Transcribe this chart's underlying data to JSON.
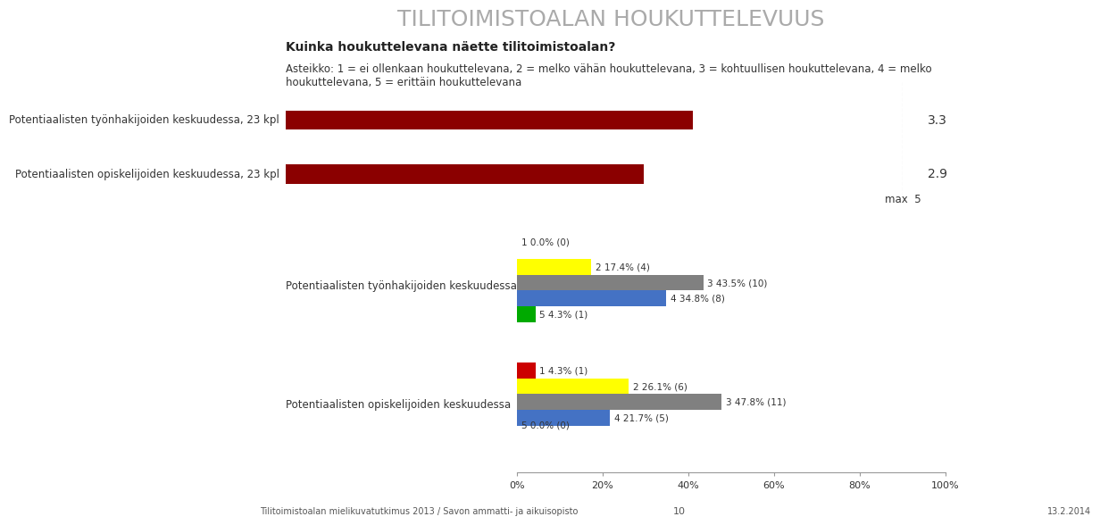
{
  "title": "TILITOIMISTOALAN HOUKUTTELEVUUS",
  "question": "Kuinka houkuttelevana näette tilitoimistoalan?",
  "scale_text": "Asteikko: 1 = ei ollenkaan houkuttelevana, 2 = melko vähän houkuttelevana, 3 = kohtuullisen houkuttelevana, 4 = melko\nhoukuttelevana, 5 = erittäin houkuttelevana",
  "top_bars": [
    {
      "label": "Potentiaalisten työnhakijoiden keskuudessa, 23 kpl",
      "value": 3.3,
      "max": 5,
      "color": "#8B0000"
    },
    {
      "label": "Potentiaalisten opiskelijoiden keskuudessa, 23 kpl",
      "value": 2.9,
      "max": 5,
      "color": "#8B0000"
    }
  ],
  "max_label": "max  5",
  "bottom_charts": [
    {
      "label": "Potentiaalisten työnhakijoiden keskuudessa",
      "bars": [
        {
          "rating": 1,
          "pct": 0.0,
          "n": 0,
          "color": "#CC0000"
        },
        {
          "rating": 2,
          "pct": 17.4,
          "n": 4,
          "color": "#FFFF00"
        },
        {
          "rating": 3,
          "pct": 43.5,
          "n": 10,
          "color": "#808080"
        },
        {
          "rating": 4,
          "pct": 34.8,
          "n": 8,
          "color": "#4472C4"
        },
        {
          "rating": 5,
          "pct": 4.3,
          "n": 1,
          "color": "#00AA00"
        }
      ]
    },
    {
      "label": "Potentiaalisten opiskelijoiden keskuudessa",
      "bars": [
        {
          "rating": 1,
          "pct": 4.3,
          "n": 1,
          "color": "#CC0000"
        },
        {
          "rating": 2,
          "pct": 26.1,
          "n": 6,
          "color": "#FFFF00"
        },
        {
          "rating": 3,
          "pct": 47.8,
          "n": 11,
          "color": "#808080"
        },
        {
          "rating": 4,
          "pct": 21.7,
          "n": 5,
          "color": "#4472C4"
        },
        {
          "rating": 5,
          "pct": 0.0,
          "n": 0,
          "color": "#00AA00"
        }
      ]
    }
  ],
  "footer_left": "Tilitoimistoalan mielikuvatutkimus 2013 / Savon ammatti- ja aikuisopisto",
  "footer_center": "10",
  "footer_right": "13.2.2014",
  "background_color": "#FFFFFF",
  "title_color": "#AAAAAA",
  "text_color": "#333333"
}
